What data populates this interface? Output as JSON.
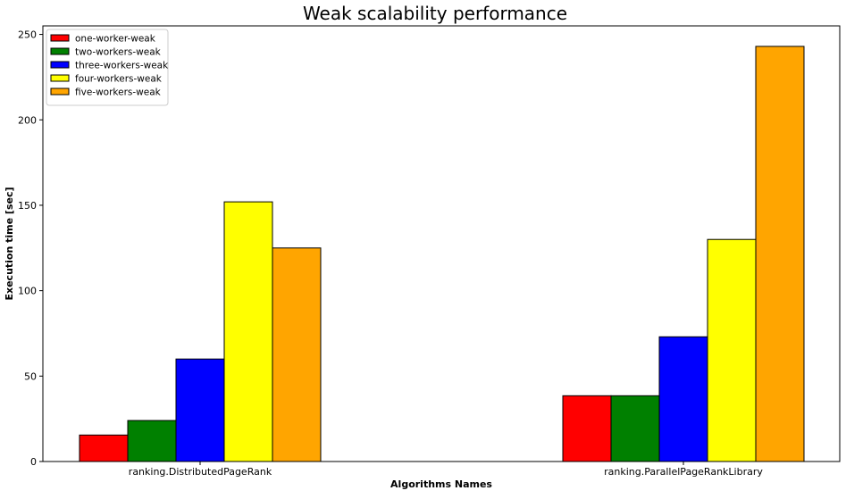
{
  "chart_data": {
    "type": "bar",
    "title": "Weak scalability performance",
    "xlabel": "Algorithms Names",
    "ylabel": "Execution time [sec]",
    "categories": [
      "ranking.DistributedPageRank",
      "ranking.ParallelPageRankLibrary"
    ],
    "series": [
      {
        "name": "one-worker-weak",
        "color": "#ff0000",
        "values": [
          15.5,
          38.5
        ]
      },
      {
        "name": "two-workers-weak",
        "color": "#008000",
        "values": [
          24,
          38.5
        ]
      },
      {
        "name": "three-workers-weak",
        "color": "#0000ff",
        "values": [
          60,
          73
        ]
      },
      {
        "name": "four-workers-weak",
        "color": "#ffff00",
        "values": [
          152,
          130
        ]
      },
      {
        "name": "five-workers-weak",
        "color": "#ffa500",
        "values": [
          125,
          243
        ]
      }
    ],
    "ylim": [
      0,
      255
    ],
    "yticks": [
      0,
      50,
      100,
      150,
      200,
      250
    ],
    "grid": false,
    "legend": "top-left"
  }
}
